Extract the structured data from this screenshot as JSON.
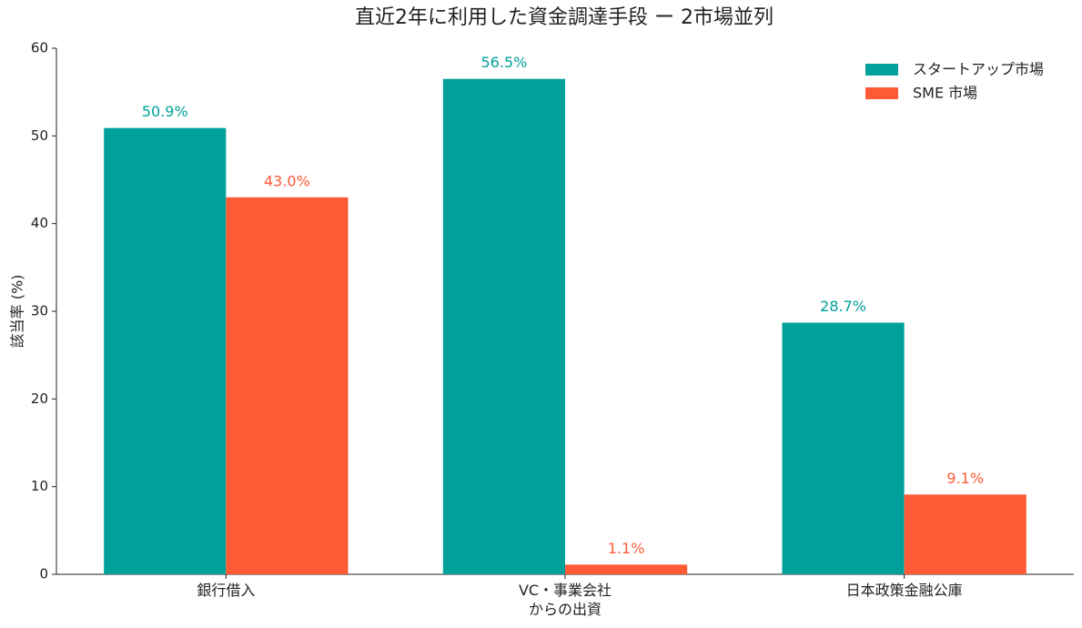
{
  "chart_data": {
    "type": "bar",
    "title": "直近2年に利用した資金調達手段 ー 2市場並列",
    "y_label": "該当率 (%)",
    "categories": [
      "銀行借入",
      "VC・事業会社\nからの出資",
      "日本政策金融公庫"
    ],
    "series": [
      {
        "name": "スタートアップ市場",
        "color": "#00a19a",
        "values": [
          50.9,
          56.5,
          28.7
        ],
        "value_labels": [
          "50.9%",
          "56.5%",
          "28.7%"
        ]
      },
      {
        "name": "SME 市場",
        "color": "#ff5a36",
        "values": [
          43.0,
          1.1,
          9.1
        ],
        "value_labels": [
          "43.0%",
          "1.1%",
          "9.1%"
        ]
      }
    ],
    "ylim": [
      0,
      60
    ],
    "yticks": [
      0,
      10,
      20,
      30,
      40,
      50,
      60
    ],
    "grid": false,
    "legend": "upper right"
  }
}
